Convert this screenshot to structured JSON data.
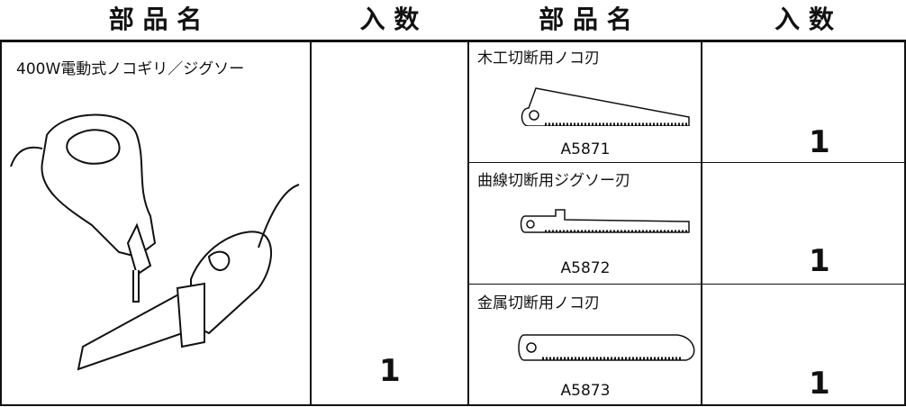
{
  "table": {
    "headers": [
      "部 品 名",
      "入 数",
      "部 品 名",
      "入 数"
    ],
    "left": {
      "name": "400W電動式ノコギリ／ジグソー",
      "quantity": 1
    },
    "right": [
      {
        "name": "木工切断用ノコ刃",
        "model": "A5871",
        "quantity": 1
      },
      {
        "name": "曲線切断用ジグソー刃",
        "model": "A5872",
        "quantity": 1
      },
      {
        "name": "金属切断用ノコ刃",
        "model": "A5873",
        "quantity": 1
      }
    ]
  }
}
